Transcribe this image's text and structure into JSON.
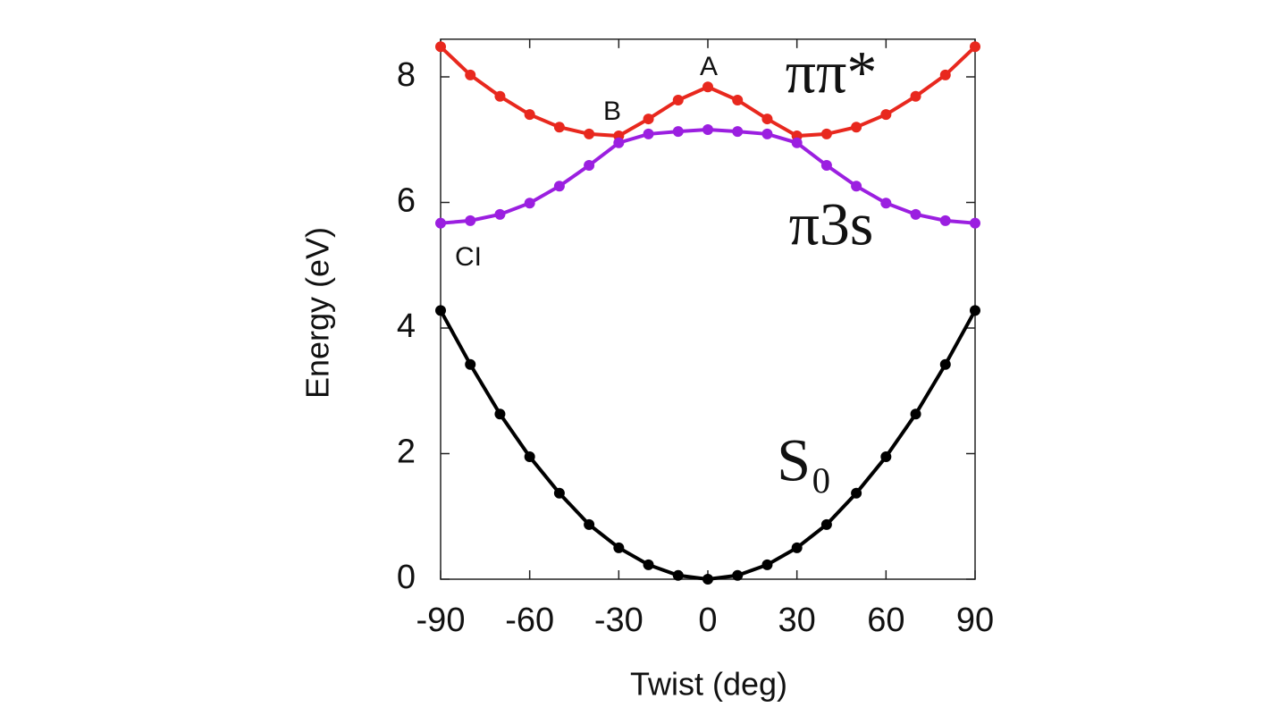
{
  "chart_data": {
    "type": "line",
    "x_label": "Twist (deg)",
    "y_label": "Energy (eV)",
    "x": [
      -90,
      -80,
      -70,
      -60,
      -50,
      -40,
      -30,
      -20,
      -10,
      0,
      10,
      20,
      30,
      40,
      50,
      60,
      70,
      80,
      90
    ],
    "series": [
      {
        "name": "ππ*",
        "color": "#e8281e",
        "values": [
          8.48,
          8.03,
          7.69,
          7.4,
          7.2,
          7.09,
          7.06,
          7.33,
          7.63,
          7.84,
          7.63,
          7.33,
          7.06,
          7.09,
          7.2,
          7.4,
          7.69,
          8.03,
          8.48
        ]
      },
      {
        "name": "π3s",
        "color": "#9b1fe0",
        "values": [
          5.67,
          5.71,
          5.81,
          5.99,
          6.26,
          6.59,
          6.95,
          7.09,
          7.13,
          7.16,
          7.13,
          7.09,
          6.95,
          6.59,
          6.26,
          5.99,
          5.81,
          5.71,
          5.67
        ]
      },
      {
        "name": "S₀",
        "color": "#000000",
        "values": [
          4.28,
          3.42,
          2.63,
          1.95,
          1.37,
          0.87,
          0.5,
          0.23,
          0.06,
          0,
          0.06,
          0.23,
          0.5,
          0.87,
          1.37,
          1.95,
          2.63,
          3.42,
          4.28
        ]
      }
    ],
    "annotations": [
      "A",
      "B",
      "CI"
    ],
    "xlim": [
      -90,
      90
    ],
    "xticks": [
      -90,
      -60,
      -30,
      0,
      30,
      60,
      90
    ],
    "ylim": [
      0,
      8.6
    ],
    "yticks": [
      0,
      2,
      4,
      6,
      8
    ]
  }
}
